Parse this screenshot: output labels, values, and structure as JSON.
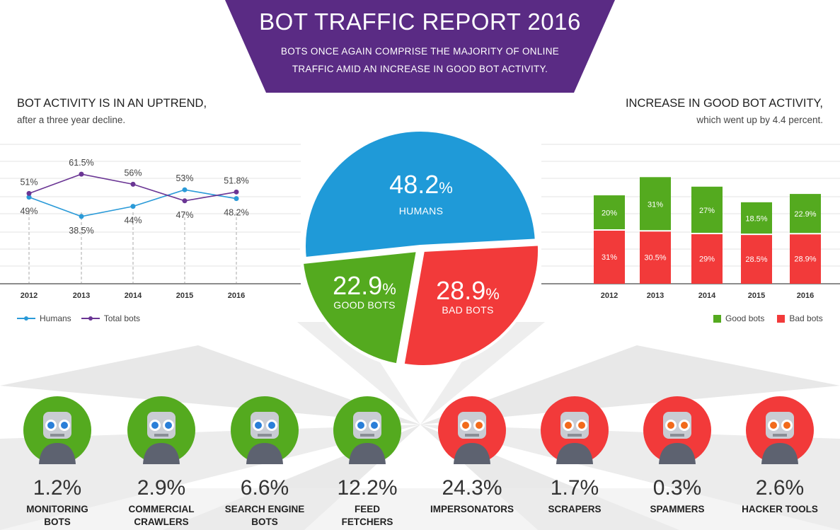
{
  "header": {
    "title": "BOT TRAFFIC REPORT 2016",
    "subtitle_line1": "BOTS ONCE AGAIN COMPRISE THE MAJORITY OF ONLINE",
    "subtitle_line2": "TRAFFIC AMID AN INCREASE IN GOOD BOT ACTIVITY."
  },
  "left_section": {
    "title": "BOT ACTIVITY IS IN AN UPTREND,",
    "subtitle": "after a three year decline.",
    "legend": [
      "Humans",
      "Total bots"
    ]
  },
  "right_section": {
    "title": "INCREASE IN GOOD BOT ACTIVITY,",
    "subtitle": "which went up by 4.4 percent.",
    "legend": [
      "Good bots",
      "Bad bots"
    ]
  },
  "colors": {
    "purple": "#5a2b84",
    "blue": "#1f9ad8",
    "green": "#54aa1f",
    "red": "#f23a3a",
    "humans_line": "#2a9ad8",
    "bots_line": "#6a3594"
  },
  "chart_data": [
    {
      "type": "line",
      "x": [
        "2012",
        "2013",
        "2014",
        "2015",
        "2016"
      ],
      "series": [
        {
          "name": "Humans",
          "values": [
            49,
            38.5,
            44,
            53,
            48.2
          ],
          "labels": [
            "49%",
            "38.5%",
            "44%",
            "53%",
            "48.2%"
          ]
        },
        {
          "name": "Total bots",
          "values": [
            51,
            61.5,
            56,
            47,
            51.8
          ],
          "labels": [
            "51%",
            "61.5%",
            "56%",
            "47%",
            "51.8%"
          ]
        }
      ],
      "ylim": [
        0,
        100
      ],
      "grid": true,
      "legend": "bottom-left"
    },
    {
      "type": "pie",
      "slices": [
        {
          "name": "HUMANS",
          "value": 48.2,
          "label": "48.2",
          "unit": "%",
          "color": "#1f9ad8"
        },
        {
          "name": "BAD BOTS",
          "value": 28.9,
          "label": "28.9",
          "unit": "%",
          "color": "#f23a3a"
        },
        {
          "name": "GOOD BOTS",
          "value": 22.9,
          "label": "22.9",
          "unit": "%",
          "color": "#54aa1f"
        }
      ]
    },
    {
      "type": "bar",
      "stacked": true,
      "categories": [
        "2012",
        "2013",
        "2014",
        "2015",
        "2016"
      ],
      "series": [
        {
          "name": "Bad bots",
          "values": [
            31,
            30.5,
            29,
            28.5,
            28.9
          ],
          "labels": [
            "31%",
            "30.5%",
            "29%",
            "28.5%",
            "28.9%"
          ]
        },
        {
          "name": "Good bots",
          "values": [
            20,
            31,
            27,
            18.5,
            22.9
          ],
          "labels": [
            "20%",
            "31%",
            "27%",
            "18.5%",
            "22.9%"
          ]
        }
      ],
      "legend": "bottom-right"
    }
  ],
  "categories": [
    {
      "pct": "1.2%",
      "line1": "MONITORING",
      "line2": "BOTS",
      "kind": "good",
      "icon": "nurse-robot-icon"
    },
    {
      "pct": "2.9%",
      "line1": "COMMERCIAL",
      "line2": "CRAWLERS",
      "kind": "good",
      "icon": "spider-robot-icon"
    },
    {
      "pct": "6.6%",
      "line1": "SEARCH ENGINE",
      "line2": "BOTS",
      "kind": "good",
      "icon": "detective-robot-icon"
    },
    {
      "pct": "12.2%",
      "line1": "FEED",
      "line2": "FETCHERS",
      "kind": "good",
      "icon": "courier-robot-icon"
    },
    {
      "pct": "24.3%",
      "line1": "IMPERSONATORS",
      "line2": "",
      "kind": "bad",
      "icon": "mustache-robot-icon"
    },
    {
      "pct": "1.7%",
      "line1": "SCRAPERS",
      "line2": "",
      "kind": "bad",
      "icon": "burglar-robot-icon"
    },
    {
      "pct": "0.3%",
      "line1": "SPAMMERS",
      "line2": "",
      "kind": "bad",
      "icon": "zombie-robot-icon"
    },
    {
      "pct": "2.6%",
      "line1": "HACKER TOOLS",
      "line2": "",
      "kind": "bad",
      "icon": "hooded-robot-icon"
    }
  ]
}
